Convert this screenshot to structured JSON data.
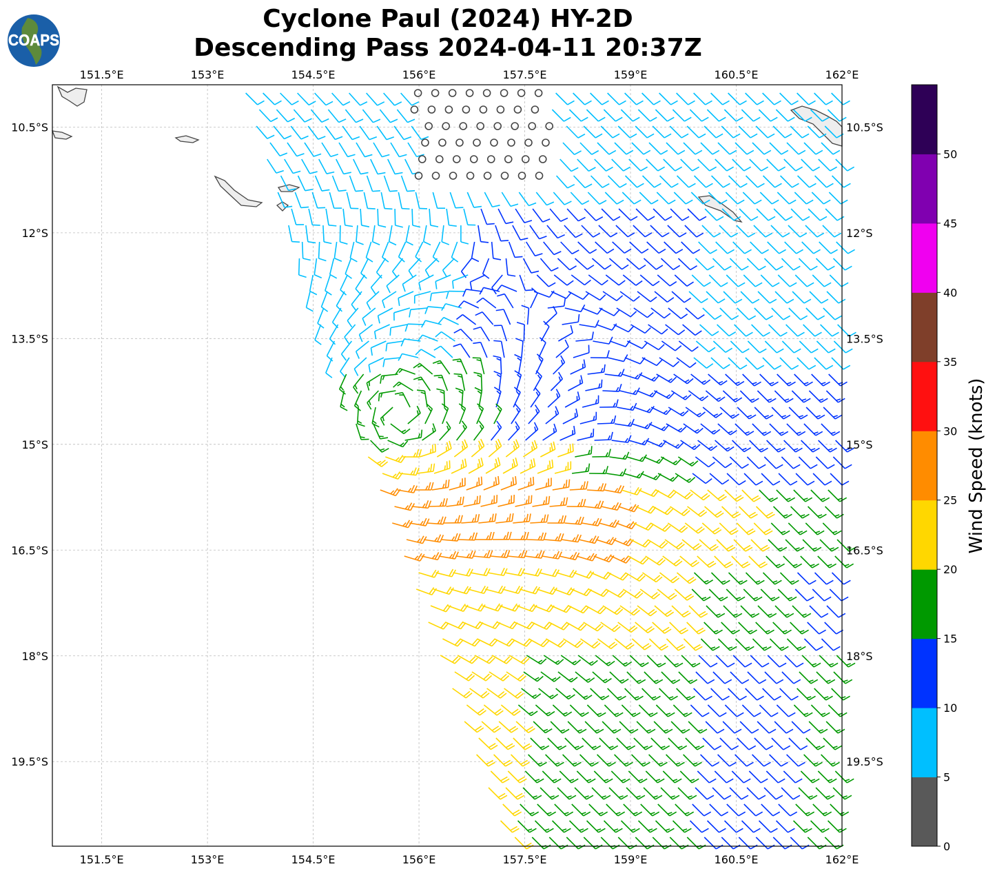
{
  "title": {
    "line1": "Cyclone Paul (2024) HY-2D",
    "line2": "Descending Pass 2024-04-11 20:37Z"
  },
  "logo": {
    "text": "COAPS"
  },
  "map": {
    "lon_range": [
      150.8,
      162.0
    ],
    "lat_range": [
      -9.9,
      -20.7
    ],
    "lon_ticks": [
      {
        "v": 151.5,
        "label": "151.5°E"
      },
      {
        "v": 153,
        "label": "153°E"
      },
      {
        "v": 154.5,
        "label": "154.5°E"
      },
      {
        "v": 156,
        "label": "156°E"
      },
      {
        "v": 157.5,
        "label": "157.5°E"
      },
      {
        "v": 159,
        "label": "159°E"
      },
      {
        "v": 160.5,
        "label": "160.5°E"
      },
      {
        "v": 162,
        "label": "162°E"
      }
    ],
    "lat_ticks": [
      {
        "v": -10.5,
        "label": "10.5°S"
      },
      {
        "v": -12,
        "label": "12°S"
      },
      {
        "v": -13.5,
        "label": "13.5°S"
      },
      {
        "v": -15,
        "label": "15°S"
      },
      {
        "v": -16.5,
        "label": "16.5°S"
      },
      {
        "v": -18,
        "label": "18°S"
      },
      {
        "v": -19.5,
        "label": "19.5°S"
      }
    ],
    "grid": true
  },
  "colorbar": {
    "label": "Wind Speed (knots)",
    "bounds": [
      0,
      5,
      10,
      15,
      20,
      25,
      30,
      35,
      40,
      45,
      50,
      55
    ],
    "tick_labels": [
      "0",
      "5",
      "10",
      "15",
      "20",
      "25",
      "30",
      "35",
      "40",
      "45",
      "50"
    ],
    "colors": [
      "#595959",
      "#00bfff",
      "#0033ff",
      "#009900",
      "#ffd700",
      "#ff8c00",
      "#ff1010",
      "#7f3f2a",
      "#f000f0",
      "#8000b0",
      "#2e0056"
    ]
  }
}
